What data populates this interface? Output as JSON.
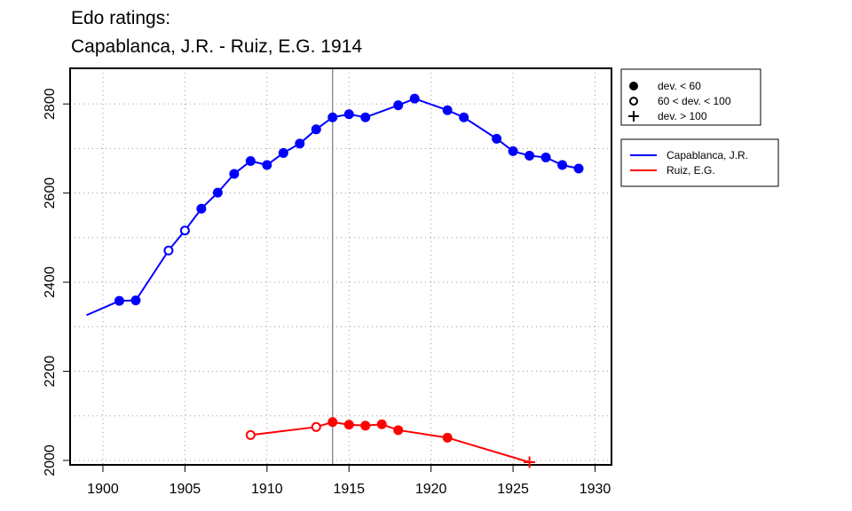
{
  "chart_data": {
    "type": "line",
    "title_line1": "Edo ratings:",
    "title_line2": "Capablanca, J.R. - Ruiz, E.G. 1914",
    "xlabel": "",
    "ylabel": "",
    "xlim": [
      1898,
      1931
    ],
    "ylim": [
      1990,
      2880
    ],
    "x_ticks": [
      1900,
      1905,
      1910,
      1915,
      1920,
      1925,
      1930
    ],
    "y_ticks": [
      2000,
      2200,
      2400,
      2600,
      2800
    ],
    "grid": true,
    "vline_x": 1914,
    "series": [
      {
        "name": "Capablanca, J.R.",
        "color": "#0000ff",
        "points": [
          {
            "x": 1899,
            "y": 2326,
            "marker": "none"
          },
          {
            "x": 1901,
            "y": 2358,
            "marker": "filled"
          },
          {
            "x": 1902,
            "y": 2359,
            "marker": "filled"
          },
          {
            "x": 1904,
            "y": 2471,
            "marker": "open"
          },
          {
            "x": 1905,
            "y": 2516,
            "marker": "open"
          },
          {
            "x": 1906,
            "y": 2565,
            "marker": "filled"
          },
          {
            "x": 1907,
            "y": 2601,
            "marker": "filled"
          },
          {
            "x": 1908,
            "y": 2643,
            "marker": "filled"
          },
          {
            "x": 1909,
            "y": 2672,
            "marker": "filled"
          },
          {
            "x": 1910,
            "y": 2663,
            "marker": "filled"
          },
          {
            "x": 1911,
            "y": 2690,
            "marker": "filled"
          },
          {
            "x": 1912,
            "y": 2711,
            "marker": "filled"
          },
          {
            "x": 1913,
            "y": 2743,
            "marker": "filled"
          },
          {
            "x": 1914,
            "y": 2770,
            "marker": "filled"
          },
          {
            "x": 1915,
            "y": 2777,
            "marker": "filled"
          },
          {
            "x": 1916,
            "y": 2770,
            "marker": "filled"
          },
          {
            "x": 1918,
            "y": 2797,
            "marker": "filled"
          },
          {
            "x": 1919,
            "y": 2812,
            "marker": "filled"
          },
          {
            "x": 1921,
            "y": 2786,
            "marker": "filled"
          },
          {
            "x": 1922,
            "y": 2770,
            "marker": "filled"
          },
          {
            "x": 1924,
            "y": 2722,
            "marker": "filled"
          },
          {
            "x": 1925,
            "y": 2694,
            "marker": "filled"
          },
          {
            "x": 1926,
            "y": 2684,
            "marker": "filled"
          },
          {
            "x": 1927,
            "y": 2680,
            "marker": "filled"
          },
          {
            "x": 1928,
            "y": 2663,
            "marker": "filled"
          },
          {
            "x": 1929,
            "y": 2655,
            "marker": "filled"
          }
        ]
      },
      {
        "name": "Ruiz, E.G.",
        "color": "#ff0000",
        "points": [
          {
            "x": 1909,
            "y": 2057,
            "marker": "open"
          },
          {
            "x": 1913,
            "y": 2075,
            "marker": "open"
          },
          {
            "x": 1914,
            "y": 2086,
            "marker": "filled"
          },
          {
            "x": 1915,
            "y": 2080,
            "marker": "filled"
          },
          {
            "x": 1916,
            "y": 2078,
            "marker": "filled"
          },
          {
            "x": 1917,
            "y": 2081,
            "marker": "filled"
          },
          {
            "x": 1918,
            "y": 2068,
            "marker": "filled"
          },
          {
            "x": 1921,
            "y": 2051,
            "marker": "filled"
          },
          {
            "x": 1926,
            "y": 1996,
            "marker": "plus"
          }
        ]
      }
    ],
    "legend_markers": [
      {
        "marker": "filled",
        "label": "dev. < 60"
      },
      {
        "marker": "open",
        "label": "60 < dev. < 100"
      },
      {
        "marker": "plus",
        "label": "dev. > 100"
      }
    ],
    "legend_position": "right"
  }
}
